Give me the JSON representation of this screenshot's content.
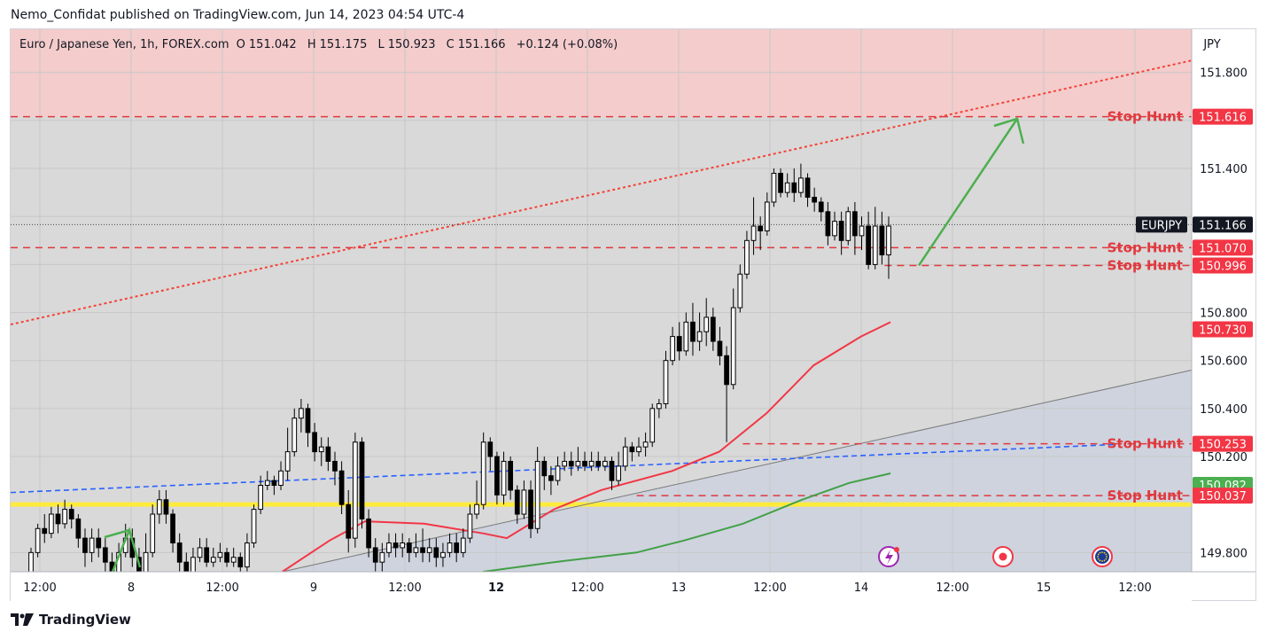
{
  "publisher_line": "Nemo_Confidat published on TradingView.com, Jun 14, 2023 04:54 UTC-4",
  "legend": {
    "symbol": "Euro / Japanese Yen, 1h, FOREX.com",
    "o_label": "O",
    "o": "151.042",
    "h_label": "H",
    "h": "151.175",
    "l_label": "L",
    "l": "150.923",
    "c_label": "C",
    "c": "151.166",
    "change": "+0.124 (+0.08%)"
  },
  "footer_brand": "TradingView",
  "chart_data": {
    "type": "candlestick",
    "symbol": "EURJPY",
    "timeframe": "1h",
    "currency_label": "JPY",
    "y_ticks": [
      "149.800",
      "150.200",
      "150.400",
      "150.600",
      "150.800",
      "151.400",
      "151.800"
    ],
    "ylim": [
      149.72,
      151.98
    ],
    "x_ticks": [
      "12:00",
      "8",
      "12:00",
      "9",
      "12:00",
      "12",
      "12:00",
      "13",
      "12:00",
      "14",
      "12:00",
      "15",
      "12:00"
    ],
    "x_tick_bold": [
      false,
      false,
      false,
      false,
      false,
      true,
      false,
      false,
      false,
      false,
      false,
      false,
      false
    ],
    "last_price": {
      "label": "EURJPY",
      "value": "151.166",
      "price": 151.166
    },
    "horizontal_levels": [
      {
        "label": "Stop Hunt",
        "value": "151.616",
        "price": 151.616,
        "color": "#e0393e"
      },
      {
        "label": "Stop Hunt",
        "value": "151.070",
        "price": 151.07,
        "color": "#e0393e"
      },
      {
        "label": "Stop Hunt",
        "value": "150.996",
        "price": 150.996,
        "color": "#e0393e"
      },
      {
        "label": "Stop Hunt",
        "value": "150.253",
        "price": 150.253,
        "color": "#e0393e"
      },
      {
        "label": "Stop Hunt",
        "value": "150.037",
        "price": 150.037,
        "color": "#e0393e"
      }
    ],
    "price_badges": [
      {
        "value": "150.730",
        "price": 150.73,
        "color": "#f23645"
      },
      {
        "value": "150.082",
        "price": 150.082,
        "color": "#4caf50"
      }
    ],
    "resistance_zone": {
      "from": 151.616,
      "to": 151.98,
      "color": "#f4cccc"
    },
    "support_zone_color": "#ced3de",
    "yellow_level": 150.0,
    "ma_red": [
      [
        0.23,
        149.72
      ],
      [
        0.27,
        149.85
      ],
      [
        0.3,
        149.93
      ],
      [
        0.35,
        149.92
      ],
      [
        0.4,
        149.88
      ],
      [
        0.42,
        149.86
      ],
      [
        0.46,
        149.98
      ],
      [
        0.5,
        150.06
      ],
      [
        0.56,
        150.14
      ],
      [
        0.6,
        150.22
      ],
      [
        0.64,
        150.38
      ],
      [
        0.68,
        150.58
      ],
      [
        0.72,
        150.7
      ],
      [
        0.745,
        150.76
      ]
    ],
    "ma_green": [
      [
        0.4,
        149.72
      ],
      [
        0.46,
        149.76
      ],
      [
        0.53,
        149.8
      ],
      [
        0.57,
        149.85
      ],
      [
        0.62,
        149.92
      ],
      [
        0.67,
        150.02
      ],
      [
        0.71,
        150.09
      ],
      [
        0.745,
        150.13
      ]
    ],
    "candles": [
      [
        149.7,
        149.8,
        149.68,
        149.82
      ],
      [
        149.8,
        149.9,
        149.78,
        149.92
      ],
      [
        149.9,
        149.88,
        149.84,
        149.96
      ],
      [
        149.88,
        149.96,
        149.86,
        149.99
      ],
      [
        149.96,
        149.92,
        149.88,
        150.0
      ],
      [
        149.92,
        149.98,
        149.9,
        150.02
      ],
      [
        149.98,
        149.94,
        149.9,
        150.0
      ],
      [
        149.94,
        149.86,
        149.82,
        149.96
      ],
      [
        149.86,
        149.8,
        149.74,
        149.9
      ],
      [
        149.8,
        149.86,
        149.76,
        149.9
      ],
      [
        149.86,
        149.82,
        149.78,
        149.9
      ],
      [
        149.82,
        149.76,
        149.7,
        149.86
      ],
      [
        149.76,
        149.72,
        149.68,
        149.8
      ],
      [
        149.72,
        149.8,
        149.7,
        149.84
      ],
      [
        149.8,
        149.86,
        149.78,
        149.92
      ],
      [
        149.86,
        149.78,
        149.74,
        149.9
      ],
      [
        149.78,
        149.72,
        149.7,
        149.82
      ],
      [
        149.72,
        149.8,
        149.7,
        149.88
      ],
      [
        149.8,
        149.96,
        149.78,
        150.0
      ],
      [
        149.96,
        150.02,
        149.92,
        150.06
      ],
      [
        150.02,
        149.96,
        149.92,
        150.06
      ],
      [
        149.96,
        149.84,
        149.8,
        149.98
      ],
      [
        149.84,
        149.76,
        149.72,
        149.88
      ],
      [
        149.76,
        149.72,
        149.68,
        149.8
      ],
      [
        149.72,
        149.78,
        149.7,
        149.82
      ],
      [
        149.78,
        149.82,
        149.76,
        149.86
      ],
      [
        149.82,
        149.76,
        149.74,
        149.86
      ],
      [
        149.76,
        149.78,
        149.74,
        149.82
      ],
      [
        149.78,
        149.8,
        149.76,
        149.84
      ],
      [
        149.8,
        149.76,
        149.74,
        149.82
      ],
      [
        149.76,
        149.78,
        149.74,
        149.82
      ],
      [
        149.78,
        149.74,
        149.72,
        149.8
      ],
      [
        149.74,
        149.84,
        149.72,
        149.88
      ],
      [
        149.84,
        149.98,
        149.82,
        150.0
      ],
      [
        149.98,
        150.08,
        149.96,
        150.12
      ],
      [
        150.08,
        150.1,
        150.06,
        150.14
      ],
      [
        150.1,
        150.08,
        150.04,
        150.12
      ],
      [
        150.08,
        150.14,
        150.06,
        150.18
      ],
      [
        150.14,
        150.22,
        150.1,
        150.32
      ],
      [
        150.22,
        150.36,
        150.2,
        150.4
      ],
      [
        150.36,
        150.4,
        150.3,
        150.44
      ],
      [
        150.4,
        150.3,
        150.24,
        150.42
      ],
      [
        150.3,
        150.22,
        150.18,
        150.34
      ],
      [
        150.22,
        150.24,
        150.16,
        150.28
      ],
      [
        150.24,
        150.18,
        150.14,
        150.28
      ],
      [
        150.18,
        150.14,
        150.08,
        150.22
      ],
      [
        150.14,
        150.0,
        149.96,
        150.18
      ],
      [
        150.0,
        149.86,
        149.8,
        150.06
      ],
      [
        149.86,
        150.26,
        149.82,
        150.3
      ],
      [
        150.26,
        149.94,
        149.9,
        150.28
      ],
      [
        149.94,
        149.82,
        149.78,
        149.98
      ],
      [
        149.82,
        149.76,
        149.72,
        149.86
      ],
      [
        149.76,
        149.8,
        149.72,
        149.84
      ],
      [
        149.8,
        149.84,
        149.78,
        149.88
      ],
      [
        149.84,
        149.82,
        149.78,
        149.88
      ],
      [
        149.82,
        149.84,
        149.78,
        149.88
      ],
      [
        149.84,
        149.8,
        149.76,
        149.86
      ],
      [
        149.8,
        149.82,
        149.78,
        149.88
      ],
      [
        149.82,
        149.8,
        149.76,
        149.9
      ],
      [
        149.8,
        149.82,
        149.76,
        149.86
      ],
      [
        149.82,
        149.78,
        149.74,
        149.86
      ],
      [
        149.78,
        149.8,
        149.74,
        149.84
      ],
      [
        149.8,
        149.84,
        149.78,
        149.88
      ],
      [
        149.84,
        149.8,
        149.76,
        149.88
      ],
      [
        149.8,
        149.86,
        149.78,
        149.9
      ],
      [
        149.86,
        149.96,
        149.84,
        150.0
      ],
      [
        149.96,
        150.0,
        149.94,
        150.1
      ],
      [
        150.0,
        150.26,
        149.98,
        150.3
      ],
      [
        150.26,
        150.2,
        150.14,
        150.28
      ],
      [
        150.2,
        150.04,
        150.0,
        150.22
      ],
      [
        150.04,
        150.18,
        150.0,
        150.22
      ],
      [
        150.18,
        150.06,
        150.02,
        150.2
      ],
      [
        150.06,
        149.96,
        149.92,
        150.08
      ],
      [
        149.96,
        150.06,
        149.94,
        150.1
      ],
      [
        150.06,
        149.9,
        149.86,
        150.1
      ],
      [
        149.9,
        150.18,
        149.88,
        150.24
      ],
      [
        150.18,
        150.12,
        150.06,
        150.2
      ],
      [
        150.12,
        150.1,
        150.04,
        150.16
      ],
      [
        150.1,
        150.16,
        150.08,
        150.2
      ],
      [
        150.16,
        150.18,
        150.14,
        150.22
      ],
      [
        150.18,
        150.16,
        150.12,
        150.22
      ],
      [
        150.16,
        150.18,
        150.14,
        150.24
      ],
      [
        150.18,
        150.16,
        150.14,
        150.22
      ],
      [
        150.16,
        150.18,
        150.14,
        150.22
      ],
      [
        150.18,
        150.16,
        150.14,
        150.22
      ],
      [
        150.16,
        150.18,
        150.14,
        150.2
      ],
      [
        150.18,
        150.1,
        150.06,
        150.2
      ],
      [
        150.1,
        150.16,
        150.08,
        150.22
      ],
      [
        150.16,
        150.24,
        150.14,
        150.28
      ],
      [
        150.24,
        150.22,
        150.18,
        150.26
      ],
      [
        150.22,
        150.24,
        150.2,
        150.28
      ],
      [
        150.24,
        150.26,
        150.2,
        150.3
      ],
      [
        150.26,
        150.4,
        150.24,
        150.42
      ],
      [
        150.4,
        150.42,
        150.36,
        150.44
      ],
      [
        150.42,
        150.6,
        150.4,
        150.64
      ],
      [
        150.6,
        150.7,
        150.58,
        150.74
      ],
      [
        150.7,
        150.64,
        150.6,
        150.76
      ],
      [
        150.64,
        150.76,
        150.62,
        150.8
      ],
      [
        150.76,
        150.68,
        150.62,
        150.84
      ],
      [
        150.68,
        150.72,
        150.64,
        150.8
      ],
      [
        150.72,
        150.78,
        150.66,
        150.86
      ],
      [
        150.78,
        150.68,
        150.64,
        150.82
      ],
      [
        150.68,
        150.62,
        150.58,
        150.74
      ],
      [
        150.62,
        150.5,
        150.26,
        150.66
      ],
      [
        150.5,
        150.82,
        150.48,
        150.9
      ],
      [
        150.82,
        150.96,
        150.8,
        151.0
      ],
      [
        150.96,
        151.1,
        150.94,
        151.14
      ],
      [
        151.1,
        151.16,
        151.04,
        151.28
      ],
      [
        151.16,
        151.14,
        151.06,
        151.2
      ],
      [
        151.14,
        151.26,
        151.12,
        151.3
      ],
      [
        151.26,
        151.38,
        151.24,
        151.4
      ],
      [
        151.38,
        151.3,
        151.28,
        151.4
      ],
      [
        151.3,
        151.34,
        151.28,
        151.38
      ],
      [
        151.34,
        151.3,
        151.26,
        151.4
      ],
      [
        151.3,
        151.36,
        151.28,
        151.42
      ],
      [
        151.36,
        151.28,
        151.24,
        151.38
      ],
      [
        151.28,
        151.26,
        151.22,
        151.32
      ],
      [
        151.26,
        151.22,
        151.18,
        151.28
      ],
      [
        151.22,
        151.12,
        151.08,
        151.26
      ],
      [
        151.12,
        151.18,
        151.1,
        151.22
      ],
      [
        151.18,
        151.1,
        151.04,
        151.22
      ],
      [
        151.1,
        151.22,
        151.08,
        151.24
      ],
      [
        151.22,
        151.12,
        151.04,
        151.26
      ],
      [
        151.12,
        151.16,
        151.06,
        151.2
      ],
      [
        151.16,
        151.0,
        150.98,
        151.22
      ],
      [
        151.0,
        151.16,
        150.98,
        151.24
      ],
      [
        151.16,
        151.04,
        151.0,
        151.22
      ],
      [
        151.04,
        151.16,
        150.94,
        151.2
      ]
    ]
  }
}
